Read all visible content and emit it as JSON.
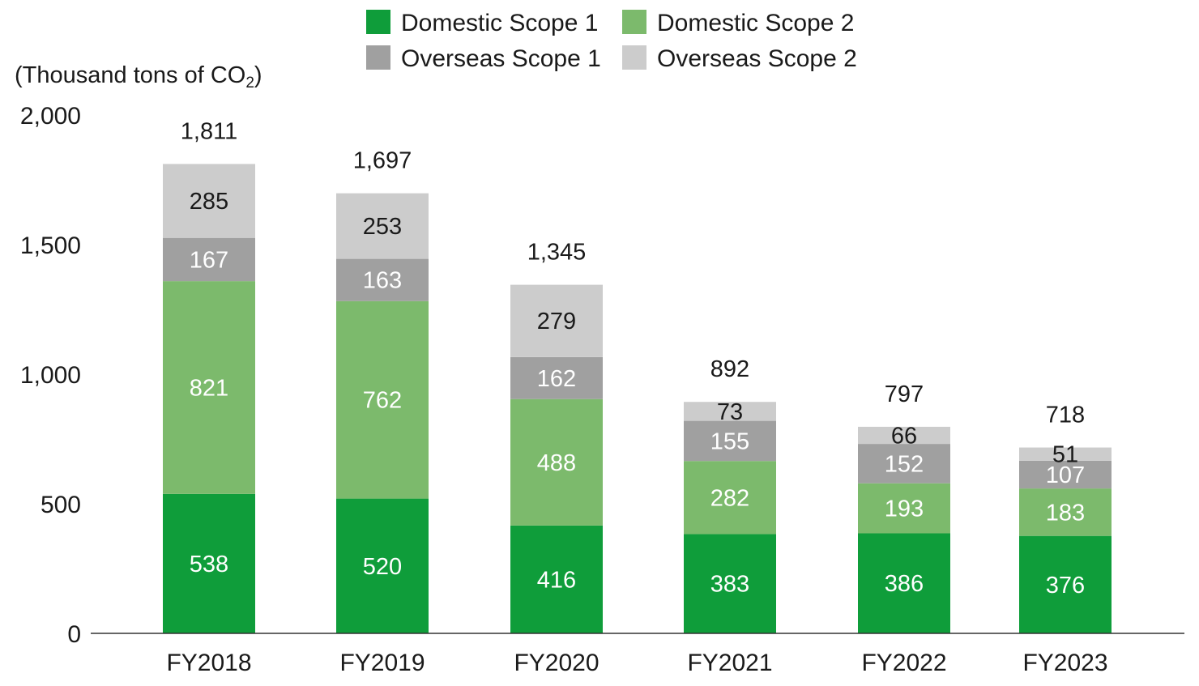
{
  "chart_data": {
    "type": "bar",
    "stacked": true,
    "ylabel_prefix": "(Thousand tons of CO",
    "ylabel_sub": "2",
    "ylabel_suffix": ")",
    "ylim": [
      0,
      2000
    ],
    "yticks": [
      0,
      500,
      1000,
      1500,
      2000
    ],
    "ytick_labels": [
      "0",
      "500",
      "1,000",
      "1,500",
      "2,000"
    ],
    "categories": [
      "FY2018",
      "FY2019",
      "FY2020",
      "FY2021",
      "FY2022",
      "FY2023"
    ],
    "series": [
      {
        "name": "Domestic Scope 1",
        "color": "#0f9d3a",
        "label_color": "#ffffff",
        "values": [
          538,
          520,
          416,
          383,
          386,
          376
        ]
      },
      {
        "name": "Domestic Scope 2",
        "color": "#7cba6c",
        "label_color": "#ffffff",
        "values": [
          821,
          762,
          488,
          282,
          193,
          183
        ]
      },
      {
        "name": "Overseas Scope 1",
        "color": "#a0a0a0",
        "label_color": "#ffffff",
        "values": [
          167,
          163,
          162,
          155,
          152,
          107
        ]
      },
      {
        "name": "Overseas Scope 2",
        "color": "#cccccc",
        "label_color": "#1a1a1a",
        "values": [
          285,
          253,
          279,
          73,
          66,
          51
        ]
      }
    ],
    "totals": [
      "1,811",
      "1,697",
      "1,345",
      "892",
      "797",
      "718"
    ],
    "legend_position": "top",
    "grid": false
  }
}
